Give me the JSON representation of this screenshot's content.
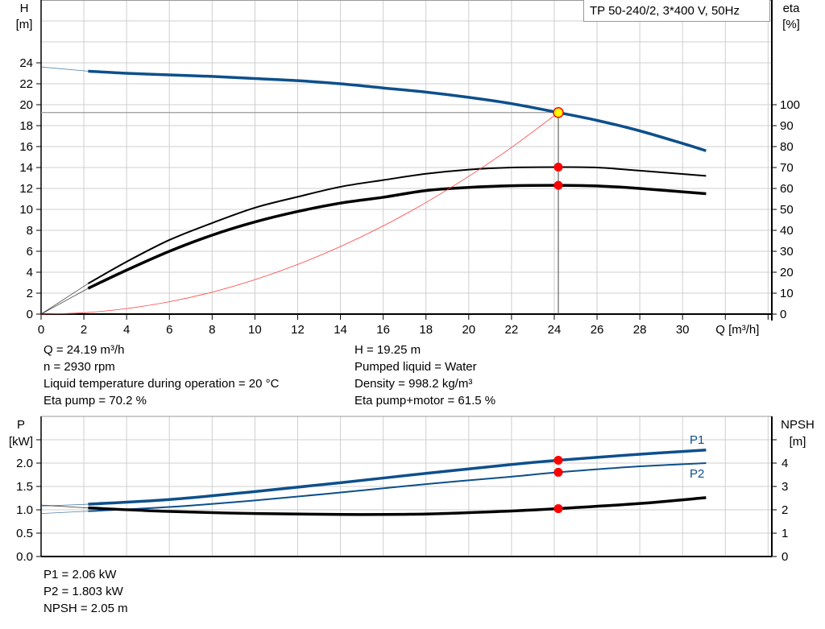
{
  "title_box": "TP 50-240/2, 3*400 V, 50Hz",
  "colors": {
    "head": "#0d4f8b",
    "efficiency": "#000000",
    "system": "#ff4040",
    "point": "#ff0000",
    "duty_point": "#ffff00",
    "grid": "#cfcfcf",
    "power": "#0d4f8b",
    "npsh": "#000000"
  },
  "chart_data": [
    {
      "type": "line",
      "xlabel": "Q [m³/h]",
      "ylabel_left": [
        "H",
        "[m]"
      ],
      "ylabel_right": [
        "eta",
        "[%]"
      ],
      "xlim": [
        0,
        34
      ],
      "ylim_left": [
        0,
        30
      ],
      "ylim_right": [
        0,
        150
      ],
      "x_ticks": [
        "0",
        "2",
        "4",
        "6",
        "8",
        "10",
        "12",
        "14",
        "16",
        "18",
        "20",
        "22",
        "24",
        "26",
        "28",
        "30"
      ],
      "y_left_ticks": [
        "0",
        "2",
        "4",
        "6",
        "8",
        "10",
        "12",
        "14",
        "16",
        "18",
        "20",
        "22",
        "24"
      ],
      "y_right_ticks": [
        "0",
        "10",
        "20",
        "30",
        "40",
        "50",
        "60",
        "70",
        "80",
        "90",
        "100"
      ],
      "grid": true,
      "series": [
        {
          "key": "H",
          "axis": "left",
          "color": "#0d4f8b",
          "x": [
            2.2,
            4,
            6,
            8,
            10,
            12,
            14,
            16,
            18,
            20,
            22,
            24.19,
            26,
            28,
            30,
            31.1
          ],
          "y": [
            23.2,
            23.0,
            22.85,
            22.7,
            22.5,
            22.3,
            22.0,
            21.6,
            21.2,
            20.7,
            20.1,
            19.25,
            18.5,
            17.5,
            16.3,
            15.6
          ],
          "extension": {
            "x": [
              0,
              2.2
            ],
            "y": [
              23.6,
              23.2
            ]
          }
        },
        {
          "key": "eta_pump",
          "axis": "right",
          "color": "#000000",
          "x": [
            2.2,
            4,
            6,
            8,
            10,
            12,
            14,
            16,
            18,
            20,
            22,
            24.19,
            26,
            28,
            31.1
          ],
          "y": [
            14.6,
            25,
            35.4,
            43.5,
            50.8,
            56,
            60.8,
            64,
            67,
            69,
            70,
            70.2,
            70,
            68.5,
            66
          ],
          "extension": {
            "x": [
              0,
              2.2
            ],
            "y": [
              0,
              14.6
            ]
          }
        },
        {
          "key": "eta_pump_motor",
          "axis": "right",
          "color": "#000000",
          "x": [
            2.2,
            4,
            6,
            8,
            10,
            12,
            14,
            16,
            18,
            20,
            22,
            24.19,
            26,
            28,
            31.1
          ],
          "y": [
            12.3,
            21,
            30,
            37.7,
            44,
            49,
            53,
            55.8,
            59,
            60.5,
            61.3,
            61.5,
            61.2,
            60,
            57.5
          ],
          "extension": {
            "x": [
              0,
              2.2
            ],
            "y": [
              0,
              12.3
            ]
          }
        },
        {
          "key": "system_curve",
          "axis": "left",
          "color": "#ff4040",
          "x": [
            0,
            2,
            4,
            6,
            8,
            10,
            12,
            14,
            16,
            18,
            20,
            22,
            24.19
          ],
          "y": [
            0,
            0.13,
            0.53,
            1.18,
            2.1,
            3.29,
            4.74,
            6.45,
            8.42,
            10.66,
            13.16,
            15.92,
            19.25
          ]
        }
      ],
      "duty_point": {
        "Q": 24.19,
        "H": 19.25,
        "eta_pump": 70.2,
        "eta_pump_motor": 61.5
      }
    },
    {
      "type": "line",
      "ylabel_left": [
        "P",
        "[kW]"
      ],
      "ylabel_right": [
        "NPSH",
        "[m]"
      ],
      "xlim": [
        0,
        34
      ],
      "ylim_left": [
        0,
        3.0
      ],
      "ylim_right": [
        0,
        6
      ],
      "y_left_ticks": [
        "0.0",
        "0.5",
        "1.0",
        "1.5",
        "2.0"
      ],
      "y_right_ticks": [
        "0",
        "1",
        "2",
        "3",
        "4"
      ],
      "grid": true,
      "series": [
        {
          "key": "P1",
          "name": "P1",
          "axis": "left",
          "color": "#0d4f8b",
          "x": [
            2.2,
            6,
            10,
            14,
            18,
            22,
            24.19,
            28,
            31.1
          ],
          "y": [
            1.12,
            1.22,
            1.39,
            1.58,
            1.78,
            1.97,
            2.06,
            2.19,
            2.28
          ],
          "extension": {
            "x": [
              0,
              2.2
            ],
            "y": [
              1.08,
              1.12
            ]
          }
        },
        {
          "key": "P2",
          "name": "P2",
          "axis": "left",
          "color": "#0d4f8b",
          "x": [
            2.2,
            6,
            10,
            14,
            18,
            22,
            24.19,
            28,
            31.1
          ],
          "y": [
            0.97,
            1.06,
            1.2,
            1.37,
            1.55,
            1.71,
            1.803,
            1.93,
            2.0
          ],
          "extension": {
            "x": [
              0,
              2.2
            ],
            "y": [
              0.92,
              0.97
            ]
          }
        },
        {
          "key": "NPSH",
          "axis": "right",
          "color": "#000000",
          "x": [
            2.2,
            6,
            10,
            14,
            18,
            22,
            24.19,
            28,
            31.1
          ],
          "y": [
            2.08,
            1.93,
            1.84,
            1.8,
            1.82,
            1.95,
            2.05,
            2.27,
            2.52
          ],
          "extension": {
            "x": [
              0,
              2.2
            ],
            "y": [
              2.2,
              2.08
            ]
          }
        }
      ],
      "duty_point": {
        "Q": 24.19,
        "P1": 2.06,
        "P2": 1.803,
        "NPSH": 2.05
      }
    }
  ],
  "info_top_left": [
    "Q = 24.19 m³/h",
    "n = 2930 rpm",
    "Liquid temperature during operation = 20 °C",
    "Eta pump = 70.2 %"
  ],
  "info_top_right": [
    "H = 19.25 m",
    "Pumped liquid = Water",
    "Density = 998.2 kg/m³",
    "Eta pump+motor = 61.5 %"
  ],
  "info_bottom": [
    "P1 = 2.06 kW",
    "P2 = 1.803 kW",
    "NPSH = 2.05 m"
  ]
}
